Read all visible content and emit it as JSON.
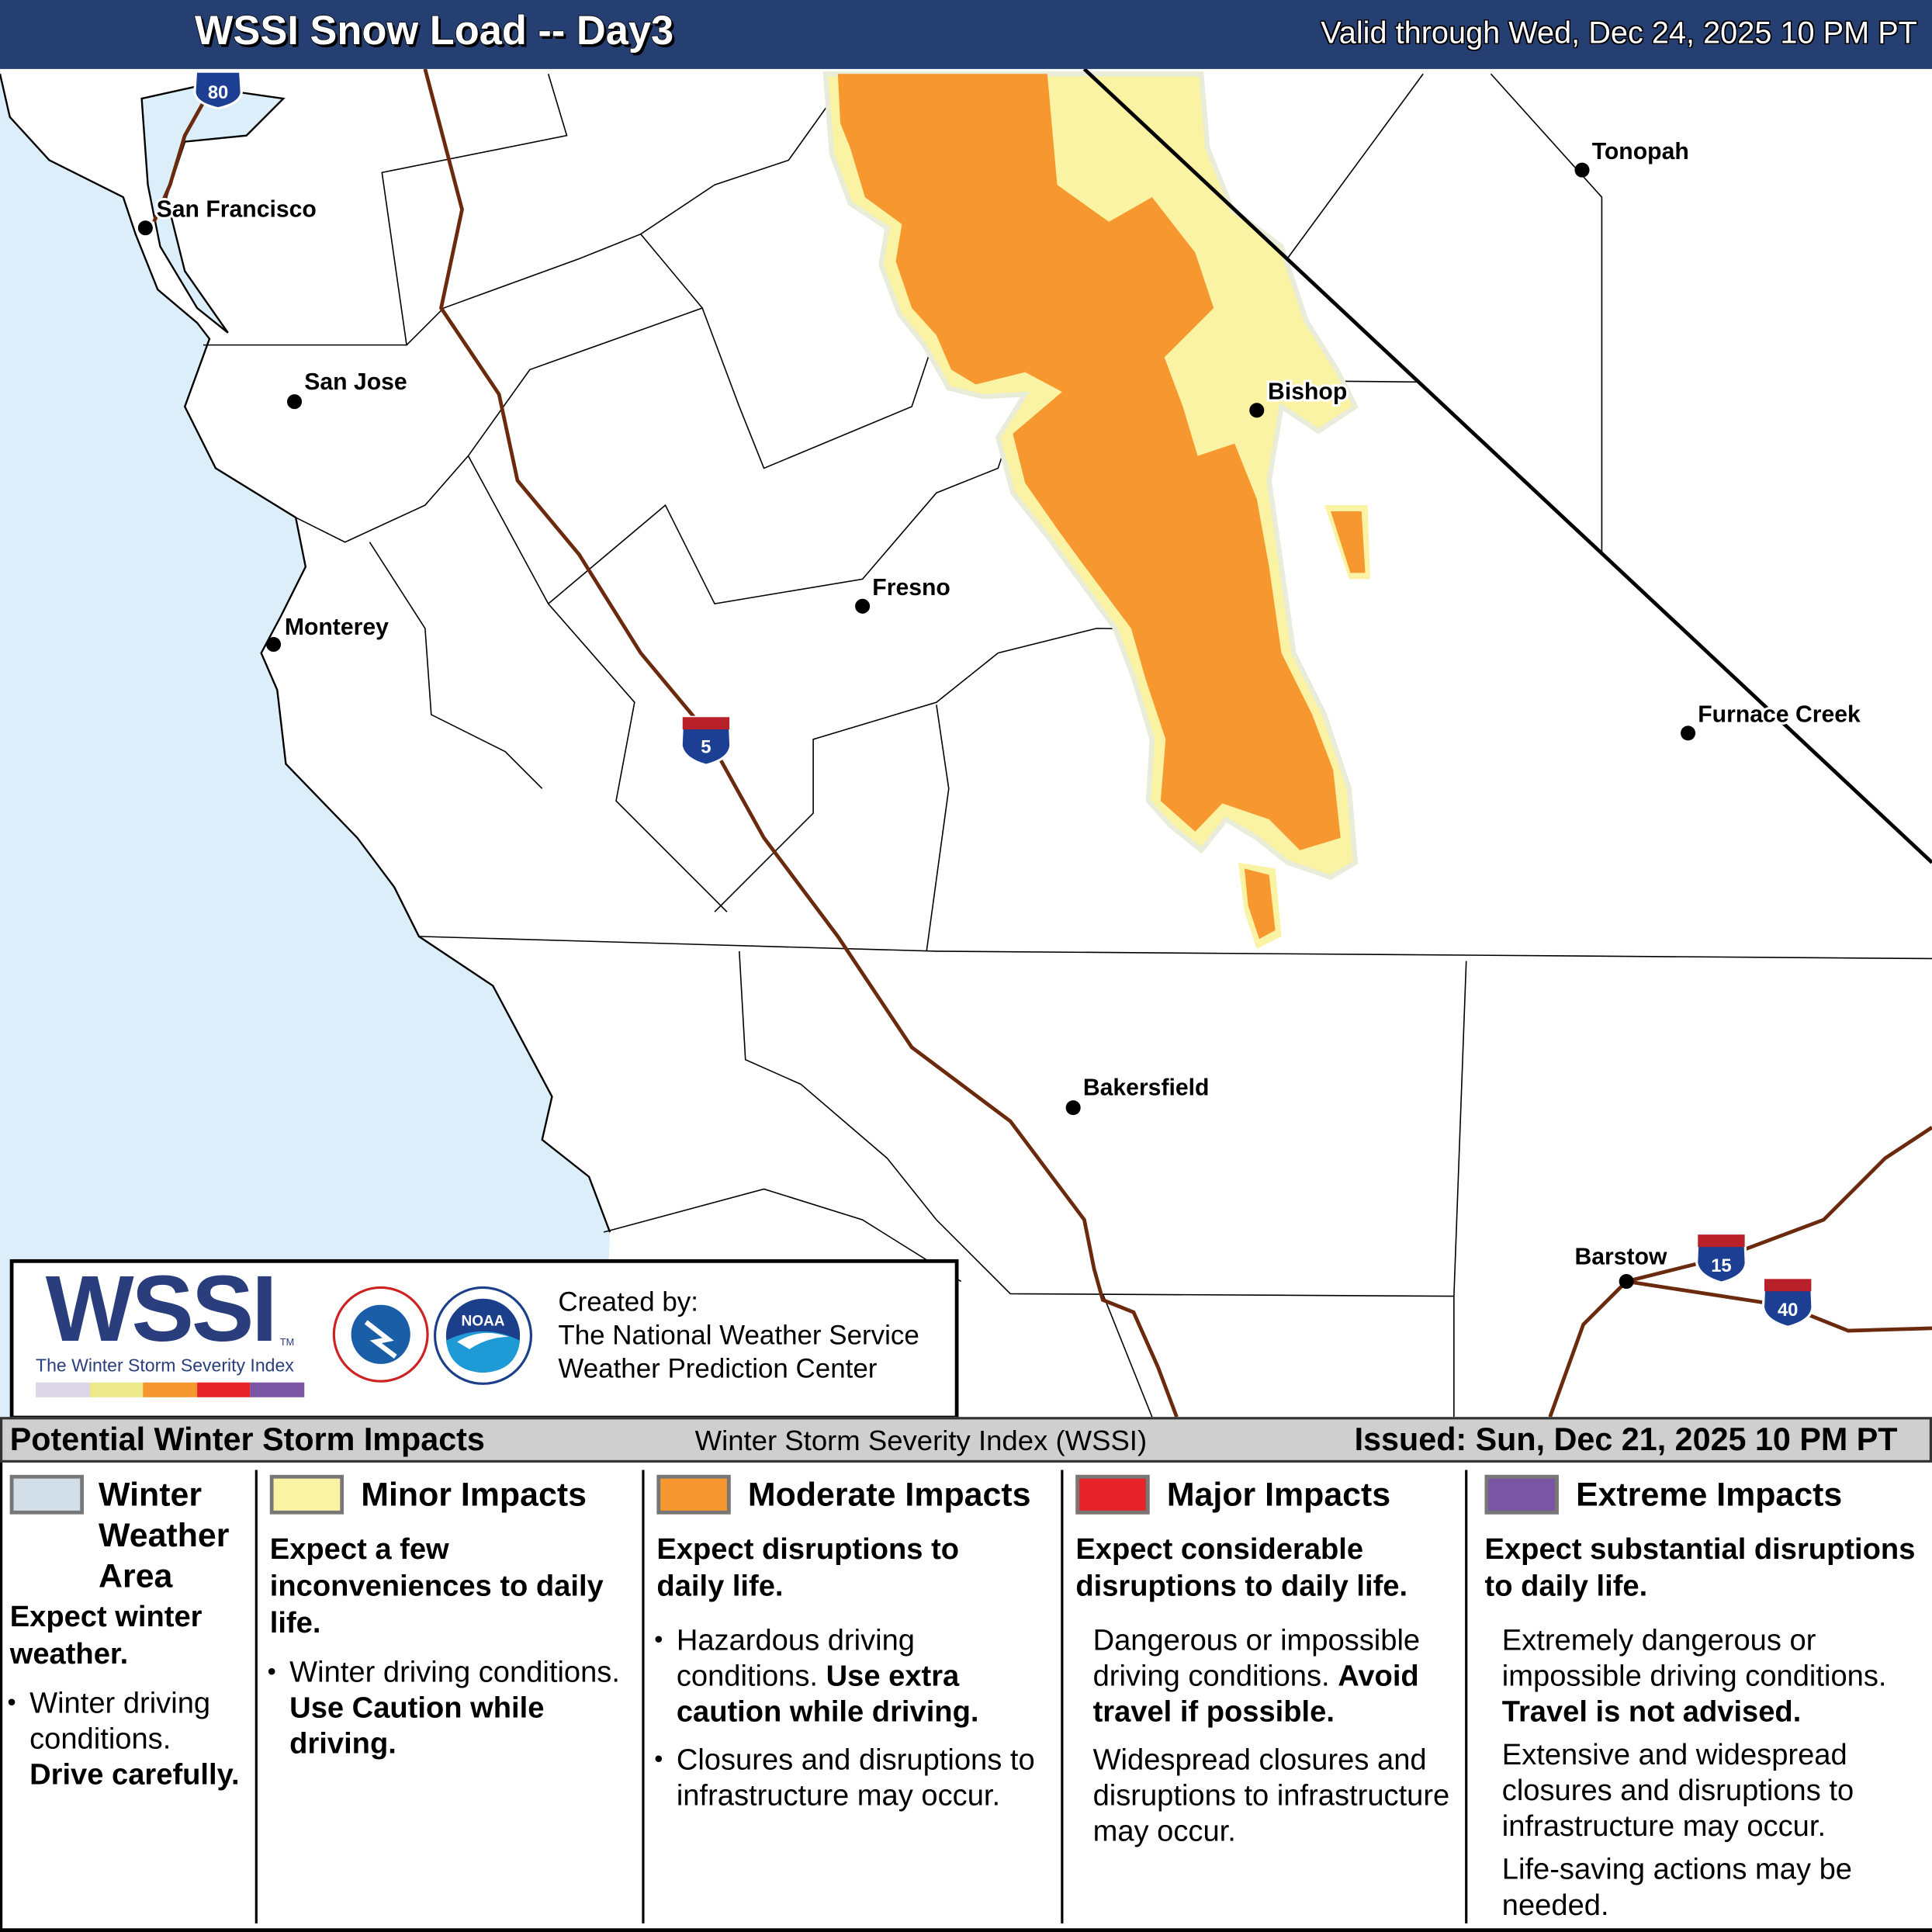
{
  "header": {
    "title": "WSSI Snow Load -- Day3",
    "valid": "Valid through Wed, Dec 24, 2025 10 PM PT",
    "bg_color": "#263f73"
  },
  "map": {
    "colors": {
      "ocean": "#dbeefa",
      "winter_weather_area": "#d3dfe8",
      "minor": "#f9f3a3",
      "moderate": "#f7972f",
      "interstate": "#6b2a0e"
    },
    "cities": [
      {
        "name": "San Francisco"
      },
      {
        "name": "San Jose"
      },
      {
        "name": "Monterey"
      },
      {
        "name": "Fresno"
      },
      {
        "name": "Bishop"
      },
      {
        "name": "Tonopah"
      },
      {
        "name": "Furnace Creek"
      },
      {
        "name": "Bakersfield"
      },
      {
        "name": "Barstow"
      }
    ],
    "interstates": [
      "80",
      "5",
      "15",
      "40"
    ]
  },
  "logo": {
    "wssi": "WSSI",
    "tm": "TM",
    "subtitle": "The Winter Storm Severity Index",
    "scale_colors": [
      "#dcd6e8",
      "#ece98a",
      "#f7972f",
      "#e52329",
      "#7a55a3"
    ],
    "nws_text": "NATIONAL WEATHER SERVICE",
    "noaa_text": "NOAA",
    "created_by": "Created by:",
    "org1": "The National Weather Service",
    "org2": "Weather Prediction Center"
  },
  "legend_bar": {
    "left": "Potential Winter Storm Impacts",
    "middle": "Winter Storm Severity Index (WSSI)",
    "issued": "Issued: Sun, Dec 21, 2025 10 PM PT"
  },
  "legend": [
    {
      "title": "Winter Weather Area",
      "color": "#d3dfe8",
      "summary": "Expect winter weather.",
      "bullets": [
        {
          "text": "Winter driving conditions.",
          "bold": "Drive carefully."
        }
      ]
    },
    {
      "title": "Minor Impacts",
      "color": "#f9f3a3",
      "summary": "Expect a few inconveniences to daily life.",
      "bullets": [
        {
          "text": "Winter driving conditions.",
          "bold": "Use Caution while driving."
        }
      ]
    },
    {
      "title": "Moderate Impacts",
      "color": "#f7972f",
      "summary": "Expect disruptions to daily life.",
      "bullets": [
        {
          "text": "Hazardous driving conditions.",
          "bold": "Use extra caution while driving."
        },
        {
          "text": "Closures and disruptions to infrastructure may occur.",
          "bold": ""
        }
      ]
    },
    {
      "title": "Major Impacts",
      "color": "#e52329",
      "summary": "Expect considerable disruptions to daily life.",
      "bullets": [
        {
          "text": "Dangerous or impossible driving conditions.",
          "bold": "Avoid travel if possible."
        },
        {
          "text": "Widespread closures and disruptions to infrastructure may occur.",
          "bold": ""
        }
      ]
    },
    {
      "title": "Extreme Impacts",
      "color": "#7a55a3",
      "summary": "Expect substantial disruptions to daily life.",
      "bullets": [
        {
          "text": "Extremely dangerous or impossible driving conditions.",
          "bold": "Travel is not advised."
        },
        {
          "text": "Extensive and widespread closures and disruptions to infrastructure may occur.",
          "bold": ""
        },
        {
          "text": "Life-saving actions may be needed.",
          "bold": ""
        }
      ]
    }
  ]
}
